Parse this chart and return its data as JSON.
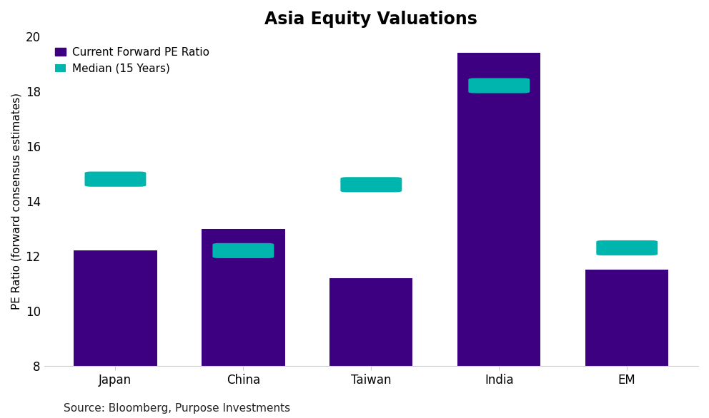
{
  "title": "Asia Equity Valuations",
  "categories": [
    "Japan",
    "China",
    "Taiwan",
    "India",
    "EM"
  ],
  "bar_values": [
    12.2,
    13.0,
    11.2,
    19.4,
    11.5
  ],
  "median_values": [
    14.8,
    12.2,
    14.6,
    18.2,
    12.3
  ],
  "bar_color": "#3D0080",
  "median_color": "#00B5AD",
  "ylabel": "PE Ratio (forward consensus estimates)",
  "ylim_min": 8,
  "ylim_max": 20,
  "yticks": [
    8,
    10,
    12,
    14,
    16,
    18,
    20
  ],
  "legend_bar_label": "Current Forward PE Ratio",
  "legend_median_label": "Median (15 Years)",
  "source_text": "Source: Bloomberg, Purpose Investments",
  "title_fontsize": 17,
  "axis_label_fontsize": 11,
  "tick_fontsize": 12,
  "source_fontsize": 11,
  "bar_width": 0.65,
  "background_color": "#ffffff"
}
